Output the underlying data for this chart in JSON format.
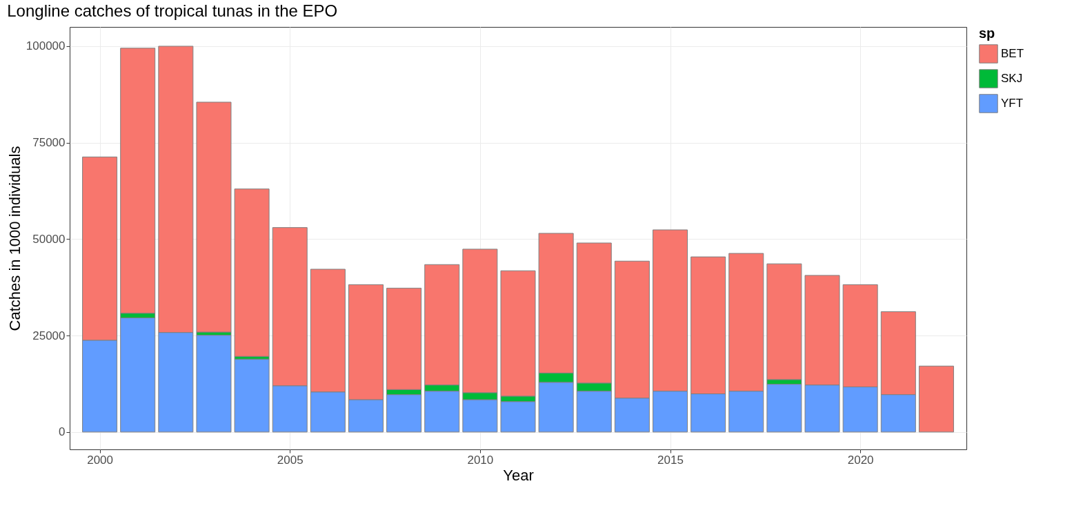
{
  "chart_data": {
    "type": "bar",
    "title": "Longline catches of tropical tunas in the EPO",
    "xlabel": "Year",
    "ylabel": "Catches in 1000 individuals",
    "legend_title": "sp",
    "x": [
      2000,
      2001,
      2002,
      2003,
      2004,
      2005,
      2006,
      2007,
      2008,
      2009,
      2010,
      2011,
      2012,
      2013,
      2014,
      2015,
      2016,
      2017,
      2018,
      2019,
      2020,
      2021,
      2022
    ],
    "stacked": true,
    "series": [
      {
        "name": "YFT",
        "color": "#619cff",
        "values": [
          23800,
          29600,
          25800,
          25100,
          18900,
          12000,
          10400,
          8400,
          9700,
          10600,
          8400,
          7900,
          12900,
          10600,
          8800,
          10600,
          9900,
          10600,
          12400,
          12200,
          11700,
          9700,
          null
        ]
      },
      {
        "name": "SKJ",
        "color": "#00ba38",
        "values": [
          null,
          1200,
          null,
          800,
          700,
          null,
          null,
          null,
          1300,
          1600,
          1800,
          1400,
          2400,
          2100,
          null,
          null,
          null,
          null,
          1200,
          null,
          null,
          null,
          null
        ]
      },
      {
        "name": "BET",
        "color": "#f8766d",
        "values": [
          47500,
          68700,
          74200,
          59600,
          43400,
          41000,
          31800,
          29800,
          26300,
          31200,
          37200,
          32500,
          36200,
          36300,
          35500,
          41800,
          35500,
          35700,
          30000,
          28400,
          26500,
          21500,
          17100
        ]
      }
    ],
    "xlim": [
      1999.3,
      2022.7
    ],
    "xticks": [
      2000,
      2005,
      2010,
      2015,
      2020
    ],
    "ylim": [
      -4500,
      105000
    ],
    "yticks": [
      0,
      25000,
      50000,
      75000,
      100000
    ],
    "grid": true,
    "legend": "right"
  }
}
